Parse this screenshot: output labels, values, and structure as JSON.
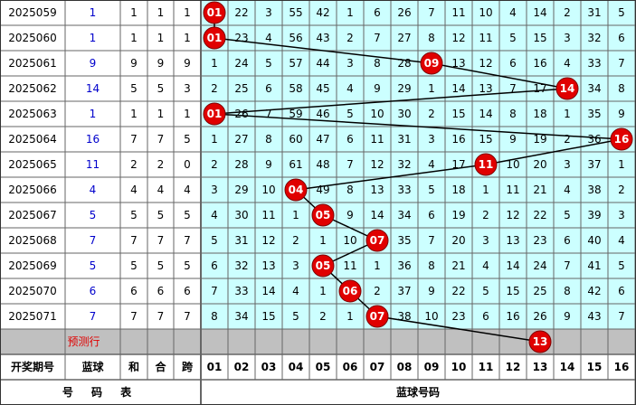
{
  "table": {
    "rows": [
      {
        "period": "2025059",
        "blue": "1",
        "sum": "1",
        "he": "1",
        "kua": "1",
        "cells": [
          "01",
          "22",
          "3",
          "55",
          "42",
          "1",
          "6",
          "26",
          "7",
          "11",
          "10",
          "4",
          "14",
          "2",
          "31",
          "5"
        ]
      },
      {
        "period": "2025060",
        "blue": "1",
        "sum": "1",
        "he": "1",
        "kua": "1",
        "cells": [
          "01",
          "23",
          "4",
          "56",
          "43",
          "2",
          "7",
          "27",
          "8",
          "12",
          "11",
          "5",
          "15",
          "3",
          "32",
          "6"
        ]
      },
      {
        "period": "2025061",
        "blue": "9",
        "sum": "9",
        "he": "9",
        "kua": "9",
        "cells": [
          "1",
          "24",
          "5",
          "57",
          "44",
          "3",
          "8",
          "28",
          "09",
          "13",
          "12",
          "6",
          "16",
          "4",
          "33",
          "7"
        ]
      },
      {
        "period": "2025062",
        "blue": "14",
        "sum": "5",
        "he": "5",
        "kua": "3",
        "cells": [
          "2",
          "25",
          "6",
          "58",
          "45",
          "4",
          "9",
          "29",
          "1",
          "14",
          "13",
          "7",
          "17",
          "14",
          "34",
          "8"
        ]
      },
      {
        "period": "2025063",
        "blue": "1",
        "sum": "1",
        "he": "1",
        "kua": "1",
        "cells": [
          "01",
          "26",
          "7",
          "59",
          "46",
          "5",
          "10",
          "30",
          "2",
          "15",
          "14",
          "8",
          "18",
          "1",
          "35",
          "9"
        ]
      },
      {
        "period": "2025064",
        "blue": "16",
        "sum": "7",
        "he": "7",
        "kua": "5",
        "cells": [
          "1",
          "27",
          "8",
          "60",
          "47",
          "6",
          "11",
          "31",
          "3",
          "16",
          "15",
          "9",
          "19",
          "2",
          "36",
          "16"
        ]
      },
      {
        "period": "2025065",
        "blue": "11",
        "sum": "2",
        "he": "2",
        "kua": "0",
        "cells": [
          "2",
          "28",
          "9",
          "61",
          "48",
          "7",
          "12",
          "32",
          "4",
          "17",
          "11",
          "10",
          "20",
          "3",
          "37",
          "1"
        ]
      },
      {
        "period": "2025066",
        "blue": "4",
        "sum": "4",
        "he": "4",
        "kua": "4",
        "cells": [
          "3",
          "29",
          "10",
          "04",
          "49",
          "8",
          "13",
          "33",
          "5",
          "18",
          "1",
          "11",
          "21",
          "4",
          "38",
          "2"
        ]
      },
      {
        "period": "2025067",
        "blue": "5",
        "sum": "5",
        "he": "5",
        "kua": "5",
        "cells": [
          "4",
          "30",
          "11",
          "1",
          "05",
          "9",
          "14",
          "34",
          "6",
          "19",
          "2",
          "12",
          "22",
          "5",
          "39",
          "3"
        ]
      },
      {
        "period": "2025068",
        "blue": "7",
        "sum": "7",
        "he": "7",
        "kua": "7",
        "cells": [
          "5",
          "31",
          "12",
          "2",
          "1",
          "10",
          "07",
          "35",
          "7",
          "20",
          "3",
          "13",
          "23",
          "6",
          "40",
          "4"
        ]
      },
      {
        "period": "2025069",
        "blue": "5",
        "sum": "5",
        "he": "5",
        "kua": "5",
        "cells": [
          "6",
          "32",
          "13",
          "3",
          "05",
          "11",
          "1",
          "36",
          "8",
          "21",
          "4",
          "14",
          "24",
          "7",
          "41",
          "5"
        ]
      },
      {
        "period": "2025070",
        "blue": "6",
        "sum": "6",
        "he": "6",
        "kua": "6",
        "cells": [
          "7",
          "33",
          "14",
          "4",
          "1",
          "06",
          "2",
          "37",
          "9",
          "22",
          "5",
          "15",
          "25",
          "8",
          "42",
          "6"
        ]
      },
      {
        "period": "2025071",
        "blue": "7",
        "sum": "7",
        "he": "7",
        "kua": "7",
        "cells": [
          "8",
          "34",
          "15",
          "5",
          "2",
          "1",
          "07",
          "38",
          "10",
          "23",
          "6",
          "16",
          "26",
          "9",
          "43",
          "7"
        ]
      }
    ],
    "prediction": {
      "label": "预测行",
      "ball": "13"
    },
    "header": [
      "开奖期号",
      "蓝球",
      "和",
      "合",
      "跨"
    ],
    "columns": [
      "01",
      "02",
      "03",
      "04",
      "05",
      "06",
      "07",
      "08",
      "09",
      "10",
      "11",
      "12",
      "13",
      "14",
      "15",
      "16"
    ],
    "footer": {
      "left": "号 码 表",
      "right": "蓝球号码"
    }
  }
}
